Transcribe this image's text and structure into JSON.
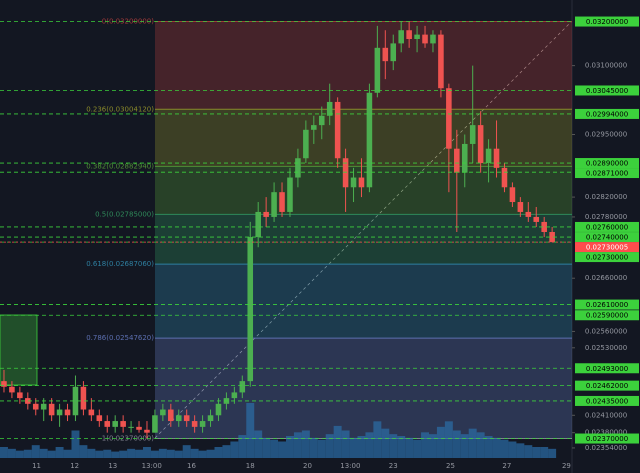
{
  "chart_data": {
    "type": "candlestick",
    "log_scale": true,
    "ylim": [
      0.02337,
      0.0325
    ],
    "yticks": [
      {
        "value": 0.031,
        "label": "0.03100000"
      },
      {
        "value": 0.0295,
        "label": "0.02950000"
      },
      {
        "value": 0.0282,
        "label": "0.02820000"
      },
      {
        "value": 0.0278,
        "label": "0.02780000"
      },
      {
        "value": 0.0266,
        "label": "0.02660000"
      },
      {
        "value": 0.0256,
        "label": "0.02560000"
      },
      {
        "value": 0.0253,
        "label": "0.02530000"
      },
      {
        "value": 0.0241,
        "label": "0.02410000"
      },
      {
        "value": 0.0238,
        "label": "0.02380000"
      },
      {
        "value": 0.02354,
        "label": "0.02354000"
      }
    ],
    "xticks": [
      {
        "value": 4.1,
        "label": "11"
      },
      {
        "value": 8.9,
        "label": "12"
      },
      {
        "value": 13.7,
        "label": "13"
      },
      {
        "value": 18.6,
        "label": "13:00"
      },
      {
        "value": 23.6,
        "label": "16"
      },
      {
        "value": 31,
        "label": "18"
      },
      {
        "value": 38.2,
        "label": "20"
      },
      {
        "value": 43.6,
        "label": "13:00"
      },
      {
        "value": 49,
        "label": "23"
      },
      {
        "value": 56.2,
        "label": "25"
      },
      {
        "value": 63.3,
        "label": "27"
      },
      {
        "value": 70.8,
        "label": "29"
      }
    ],
    "up_color": "#4caf50",
    "down_color": "#ef5350",
    "open": [
      0.0247,
      0.0246,
      0.0245,
      0.0244,
      0.0243,
      0.0242,
      0.0243,
      0.0241,
      0.0242,
      0.0241,
      0.0246,
      0.0242,
      0.0241,
      0.024,
      0.0239,
      0.024,
      0.0239,
      0.0239,
      0.02385,
      0.0238,
      0.0241,
      0.0242,
      0.024,
      0.0241,
      0.024,
      0.0239,
      0.024,
      0.0241,
      0.0243,
      0.0244,
      0.0245,
      0.0247,
      0.0274,
      0.0279,
      0.0278,
      0.0283,
      0.0279,
      0.0286,
      0.029,
      0.0296,
      0.0297,
      0.0299,
      0.0302,
      0.029,
      0.0284,
      0.0286,
      0.0284,
      0.0304,
      0.0314,
      0.0311,
      0.0315,
      0.0318,
      0.0316,
      0.0317,
      0.0315,
      0.0317,
      0.0305,
      0.0292,
      0.0287,
      0.0293,
      0.0297,
      0.0289,
      0.0292,
      0.0288,
      0.0284,
      0.0281,
      0.0279,
      0.0278,
      0.0277,
      0.0275
    ],
    "high": [
      0.0249,
      0.0247,
      0.0246,
      0.0245,
      0.0244,
      0.0244,
      0.0244,
      0.0243,
      0.0243,
      0.0248,
      0.0247,
      0.0244,
      0.0242,
      0.0241,
      0.0241,
      0.0241,
      0.024,
      0.024,
      0.024,
      0.0242,
      0.0243,
      0.0243,
      0.0242,
      0.0242,
      0.0241,
      0.0241,
      0.0242,
      0.0244,
      0.0245,
      0.0246,
      0.0248,
      0.0277,
      0.0281,
      0.0282,
      0.0285,
      0.0285,
      0.0288,
      0.0292,
      0.0298,
      0.0299,
      0.0301,
      0.0306,
      0.0303,
      0.0292,
      0.0288,
      0.029,
      0.0306,
      0.0319,
      0.0318,
      0.0317,
      0.032,
      0.032,
      0.0319,
      0.0319,
      0.0318,
      0.0318,
      0.0306,
      0.0296,
      0.0295,
      0.031,
      0.03,
      0.0294,
      0.0298,
      0.0289,
      0.0285,
      0.0282,
      0.0281,
      0.028,
      0.0278,
      0.0276
    ],
    "low": [
      0.0245,
      0.0244,
      0.0243,
      0.0242,
      0.0241,
      0.024,
      0.024,
      0.0239,
      0.024,
      0.024,
      0.0241,
      0.024,
      0.0239,
      0.0238,
      0.0238,
      0.0238,
      0.0238,
      0.0238,
      0.0237,
      0.0238,
      0.024,
      0.0239,
      0.0239,
      0.0239,
      0.0238,
      0.0238,
      0.0239,
      0.024,
      0.0242,
      0.0243,
      0.0244,
      0.0246,
      0.0272,
      0.0276,
      0.0277,
      0.0278,
      0.0278,
      0.0284,
      0.0289,
      0.0293,
      0.0294,
      0.0297,
      0.0288,
      0.0279,
      0.0281,
      0.0282,
      0.0283,
      0.0303,
      0.0307,
      0.0309,
      0.0313,
      0.0314,
      0.0313,
      0.0314,
      0.0313,
      0.0303,
      0.0283,
      0.0275,
      0.0284,
      0.0289,
      0.0287,
      0.0285,
      0.0286,
      0.0283,
      0.028,
      0.0278,
      0.0277,
      0.0276,
      0.0274,
      0.0273
    ],
    "close": [
      0.0246,
      0.0245,
      0.0244,
      0.0243,
      0.0242,
      0.0243,
      0.0241,
      0.0242,
      0.0241,
      0.0246,
      0.0242,
      0.0241,
      0.024,
      0.0239,
      0.024,
      0.0239,
      0.0239,
      0.02385,
      0.0238,
      0.0241,
      0.0242,
      0.024,
      0.0241,
      0.024,
      0.0239,
      0.024,
      0.0241,
      0.0243,
      0.0244,
      0.0245,
      0.0247,
      0.0274,
      0.0279,
      0.0278,
      0.0283,
      0.0279,
      0.0286,
      0.029,
      0.0296,
      0.0297,
      0.0299,
      0.0302,
      0.029,
      0.0284,
      0.0286,
      0.0284,
      0.0304,
      0.0314,
      0.0311,
      0.0315,
      0.0318,
      0.0316,
      0.0317,
      0.0315,
      0.0317,
      0.0305,
      0.0292,
      0.0287,
      0.0293,
      0.0297,
      0.0289,
      0.0292,
      0.0288,
      0.0284,
      0.0281,
      0.0279,
      0.0278,
      0.0277,
      0.0275,
      0.0273
    ],
    "volume": [
      12,
      10,
      8,
      9,
      14,
      10,
      8,
      12,
      9,
      30,
      14,
      10,
      8,
      9,
      7,
      8,
      10,
      9,
      12,
      8,
      10,
      9,
      8,
      14,
      10,
      8,
      9,
      12,
      14,
      18,
      25,
      60,
      30,
      22,
      20,
      18,
      24,
      28,
      30,
      22,
      20,
      26,
      35,
      30,
      22,
      24,
      28,
      40,
      32,
      26,
      24,
      22,
      20,
      28,
      26,
      34,
      40,
      30,
      26,
      32,
      28,
      24,
      22,
      20,
      18,
      16,
      14,
      12,
      12,
      10
    ],
    "volume_color": "#2b6ea8",
    "levels": [
      {
        "value": 0.032,
        "label": "0.03200000"
      },
      {
        "value": 0.03045,
        "label": "0.03045000"
      },
      {
        "value": 0.02994,
        "label": "0.02994000"
      },
      {
        "value": 0.0289,
        "label": "0.02890000"
      },
      {
        "value": 0.02871,
        "label": "0.02871000"
      },
      {
        "value": 0.0276,
        "label": "0.02760000"
      },
      {
        "value": 0.0274,
        "label": "0.02740000"
      },
      {
        "value": 0.0273,
        "label": "0.02730000"
      },
      {
        "value": 0.0261,
        "label": "0.02610000"
      },
      {
        "value": 0.0259,
        "label": "0.02590000"
      },
      {
        "value": 0.02493,
        "label": "0.02493000"
      },
      {
        "value": 0.02462,
        "label": "0.02462000"
      },
      {
        "value": 0.02435,
        "label": "0.02435000"
      },
      {
        "value": 0.0237,
        "label": "0.02370000"
      }
    ],
    "level_color": "#3cd13c",
    "last_price": {
      "value": 0.02730005,
      "label": "0.02730005",
      "color": "#ff4d4d"
    },
    "fib": [
      {
        "value": 0.032,
        "label": "0(0.03200000)",
        "color": "#a33a3a"
      },
      {
        "value": 0.0300412,
        "label": "0.236(0.03004120)",
        "color": "#8a8a2a"
      },
      {
        "value": 0.0288294,
        "label": "0.382(0.02882940)",
        "color": "#4f8f35"
      },
      {
        "value": 0.02785,
        "label": "0.5(0.02785000)",
        "color": "#2f8a5a"
      },
      {
        "value": 0.0268706,
        "label": "0.618(0.02687060)",
        "color": "#2e7fa0"
      },
      {
        "value": 0.0254762,
        "label": "0.786(0.02547620)",
        "color": "#5c6fb0"
      },
      {
        "value": 0.0237,
        "label": "1(0.02370000)",
        "color": "#808090"
      }
    ]
  }
}
